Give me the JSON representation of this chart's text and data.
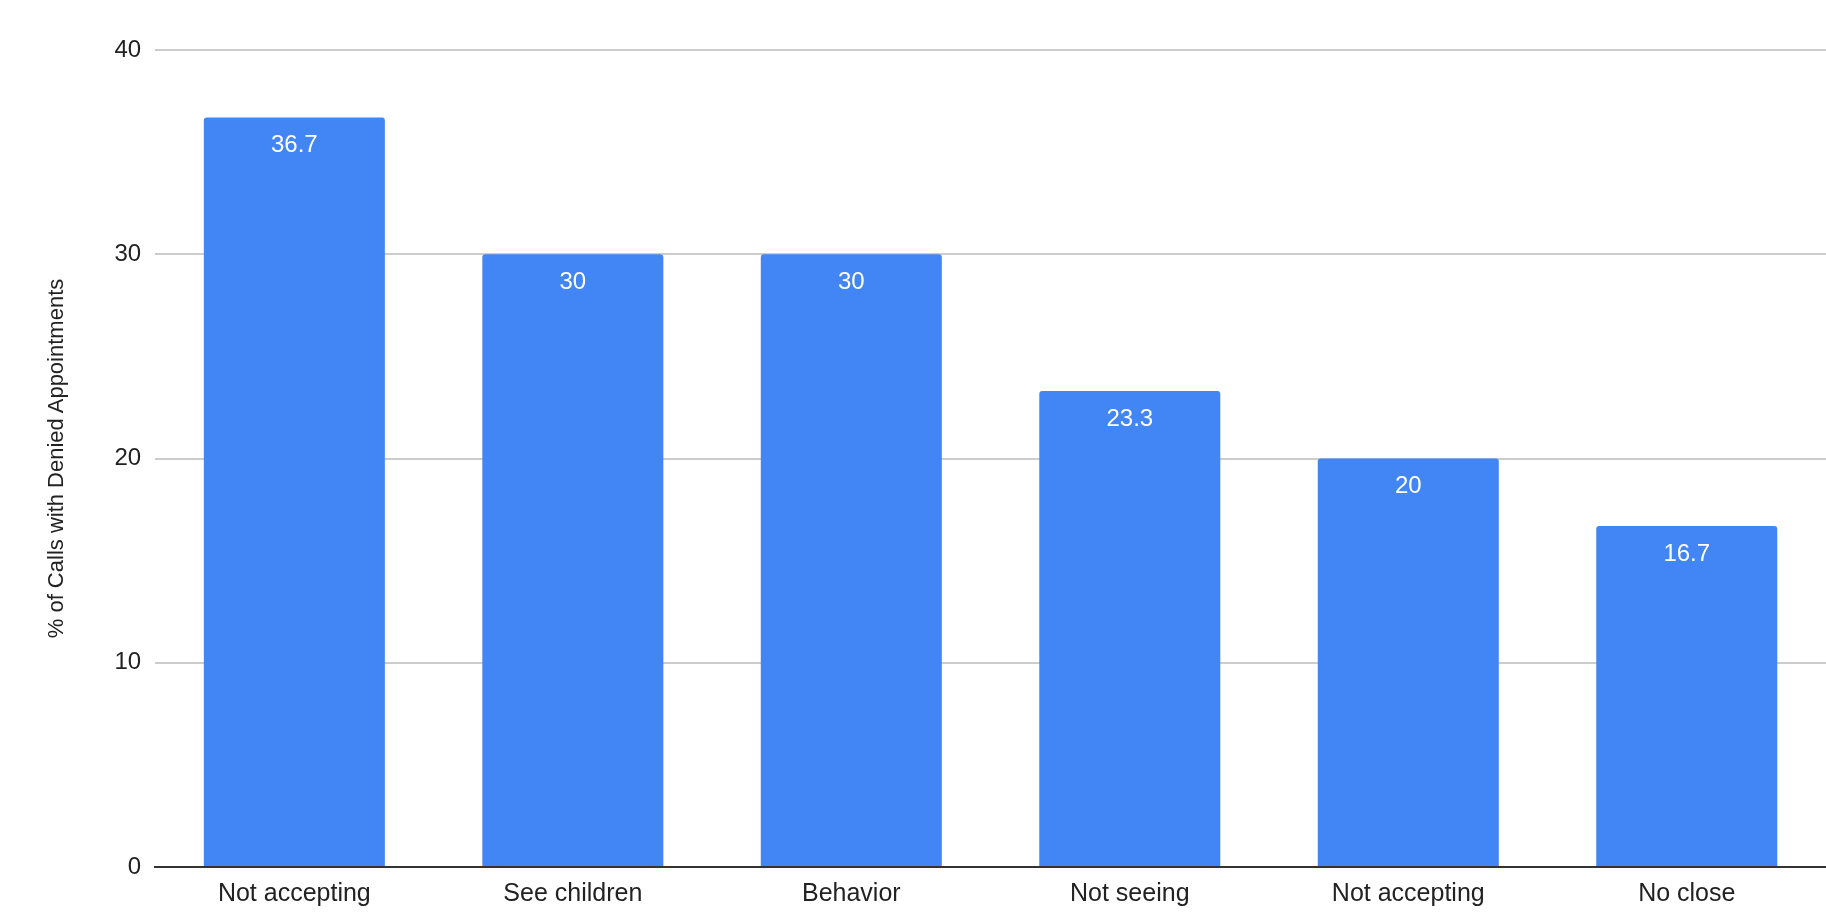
{
  "chart_data": {
    "type": "bar",
    "ylabel": "% of Calls with Denied Appointments",
    "categories": [
      "Not accepting",
      "See children",
      "Behavior",
      "Not seeing",
      "Not accepting",
      "No close"
    ],
    "values": [
      36.7,
      30,
      30,
      23.3,
      20,
      16.7
    ],
    "color": "#4285f4",
    "ylim": [
      0,
      40
    ],
    "yticks": [
      0,
      10,
      20,
      30,
      40
    ],
    "grid": "y",
    "data_labels": true
  }
}
